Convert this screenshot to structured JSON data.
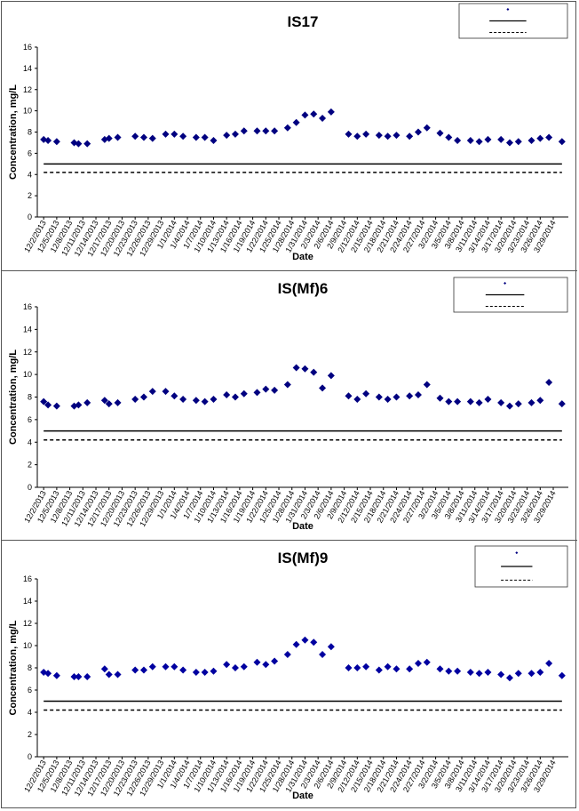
{
  "chart_data": [
    {
      "type": "scatter",
      "title": "IS17",
      "xlabel": "Date",
      "ylabel": "Concentration, mg/L",
      "ylim": [
        0,
        16
      ],
      "yticks": [
        0,
        2,
        4,
        6,
        8,
        10,
        12,
        14,
        16
      ],
      "grid": false,
      "legend": "top-right",
      "x_tick_labels": [
        "12/2/2013",
        "12/5/2013",
        "12/8/2013",
        "12/11/2013",
        "12/14/2013",
        "12/17/2013",
        "12/20/2013",
        "12/23/2013",
        "12/26/2013",
        "12/29/2013",
        "1/1/2014",
        "1/4/2014",
        "1/7/2014",
        "1/10/2014",
        "1/13/2014",
        "1/16/2014",
        "1/19/2014",
        "1/22/2014",
        "1/25/2014",
        "1/28/2014",
        "1/31/2014",
        "2/3/2014",
        "2/6/2014",
        "2/9/2014",
        "2/12/2014",
        "2/15/2014",
        "2/18/2014",
        "2/21/2014",
        "2/24/2014",
        "2/27/2014",
        "3/2/2014",
        "3/5/2014",
        "3/8/2014",
        "3/11/2014",
        "3/14/2014",
        "3/17/2014",
        "3/20/2014",
        "3/23/2014",
        "3/26/2014",
        "3/29/2014"
      ],
      "series": [
        {
          "name": "IS17",
          "marker": "diamond",
          "color": "#000080",
          "x": [
            "12/2/2013",
            "12/3/2013",
            "12/5/2013",
            "12/9/2013",
            "12/10/2013",
            "12/12/2013",
            "12/16/2013",
            "12/17/2013",
            "12/19/2013",
            "12/23/2013",
            "12/25/2013",
            "12/27/2013",
            "12/30/2013",
            "1/1/2014",
            "1/3/2014",
            "1/6/2014",
            "1/8/2014",
            "1/10/2014",
            "1/13/2014",
            "1/15/2014",
            "1/17/2014",
            "1/20/2014",
            "1/22/2014",
            "1/24/2014",
            "1/27/2014",
            "1/29/2014",
            "1/31/2014",
            "2/2/2014",
            "2/4/2014",
            "2/6/2014",
            "2/10/2014",
            "2/12/2014",
            "2/14/2014",
            "2/17/2014",
            "2/19/2014",
            "2/21/2014",
            "2/24/2014",
            "2/26/2014",
            "2/28/2014",
            "3/3/2014",
            "3/5/2014",
            "3/7/2014",
            "3/10/2014",
            "3/12/2014",
            "3/14/2014",
            "3/17/2014",
            "3/19/2014",
            "3/21/2014",
            "3/24/2014",
            "3/26/2014",
            "3/28/2014",
            "3/31/2014"
          ],
          "y": [
            7.3,
            7.2,
            7.1,
            7.0,
            6.9,
            6.9,
            7.3,
            7.4,
            7.5,
            7.6,
            7.5,
            7.4,
            7.8,
            7.8,
            7.6,
            7.5,
            7.5,
            7.2,
            7.7,
            7.8,
            8.1,
            8.1,
            8.1,
            8.1,
            8.4,
            8.9,
            9.6,
            9.7,
            9.3,
            9.9,
            7.8,
            7.6,
            7.8,
            7.7,
            7.6,
            7.7,
            7.6,
            8.0,
            8.4,
            7.9,
            7.5,
            7.2,
            7.2,
            7.1,
            7.3,
            7.3,
            7.0,
            7.1,
            7.2,
            7.4,
            7.5,
            7.1
          ]
        },
        {
          "name": "",
          "style": "solid",
          "x": [
            "12/2/2013",
            "3/31/2014"
          ],
          "y": [
            5.0,
            5.0
          ]
        },
        {
          "name": "",
          "style": "dashed",
          "x": [
            "12/2/2013",
            "3/31/2014"
          ],
          "y": [
            4.2,
            4.2
          ]
        }
      ]
    },
    {
      "type": "scatter",
      "title": "IS(Mf)6",
      "xlabel": "Date",
      "ylabel": "Concentration, mg/L",
      "ylim": [
        0,
        16
      ],
      "yticks": [
        0,
        2,
        4,
        6,
        8,
        10,
        12,
        14,
        16
      ],
      "grid": false,
      "legend": "top-right",
      "x_tick_labels": [
        "12/2/2013",
        "12/5/2013",
        "12/8/2013",
        "12/11/2013",
        "12/14/2013",
        "12/17/2013",
        "12/20/2013",
        "12/23/2013",
        "12/26/2013",
        "12/29/2013",
        "1/1/2014",
        "1/4/2014",
        "1/7/2014",
        "1/10/2014",
        "1/13/2014",
        "1/16/2014",
        "1/19/2014",
        "1/22/2014",
        "1/25/2014",
        "1/28/2014",
        "1/31/2014",
        "2/3/2014",
        "2/6/2014",
        "2/9/2014",
        "2/12/2014",
        "2/15/2014",
        "2/18/2014",
        "2/21/2014",
        "2/24/2014",
        "2/27/2014",
        "3/2/2014",
        "3/5/2014",
        "3/8/2014",
        "3/11/2014",
        "3/14/2014",
        "3/17/2014",
        "3/20/2014",
        "3/23/2014",
        "3/26/2014",
        "3/29/2014"
      ],
      "series": [
        {
          "name": "IS(Mf)6",
          "marker": "diamond",
          "color": "#000080",
          "x": [
            "12/2/2013",
            "12/3/2013",
            "12/5/2013",
            "12/9/2013",
            "12/10/2013",
            "12/12/2013",
            "12/16/2013",
            "12/17/2013",
            "12/19/2013",
            "12/23/2013",
            "12/25/2013",
            "12/27/2013",
            "12/30/2013",
            "1/1/2014",
            "1/3/2014",
            "1/6/2014",
            "1/8/2014",
            "1/10/2014",
            "1/13/2014",
            "1/15/2014",
            "1/17/2014",
            "1/20/2014",
            "1/22/2014",
            "1/24/2014",
            "1/27/2014",
            "1/29/2014",
            "1/31/2014",
            "2/2/2014",
            "2/4/2014",
            "2/6/2014",
            "2/10/2014",
            "2/12/2014",
            "2/14/2014",
            "2/17/2014",
            "2/19/2014",
            "2/21/2014",
            "2/24/2014",
            "2/26/2014",
            "2/28/2014",
            "3/3/2014",
            "3/5/2014",
            "3/7/2014",
            "3/10/2014",
            "3/12/2014",
            "3/14/2014",
            "3/17/2014",
            "3/19/2014",
            "3/21/2014",
            "3/24/2014",
            "3/26/2014",
            "3/28/2014",
            "3/31/2014"
          ],
          "y": [
            7.6,
            7.3,
            7.2,
            7.2,
            7.3,
            7.5,
            7.7,
            7.4,
            7.5,
            7.8,
            8.0,
            8.5,
            8.5,
            8.1,
            7.8,
            7.7,
            7.6,
            7.8,
            8.2,
            8.0,
            8.3,
            8.4,
            8.7,
            8.6,
            9.1,
            10.6,
            10.5,
            10.2,
            8.8,
            9.9,
            8.1,
            7.8,
            8.3,
            8.0,
            7.8,
            8.0,
            8.1,
            8.2,
            9.1,
            7.9,
            7.6,
            7.6,
            7.6,
            7.5,
            7.8,
            7.5,
            7.2,
            7.4,
            7.5,
            7.7,
            9.3,
            7.4
          ]
        },
        {
          "name": "",
          "style": "solid",
          "x": [
            "12/2/2013",
            "3/31/2014"
          ],
          "y": [
            5.0,
            5.0
          ]
        },
        {
          "name": "",
          "style": "dashed",
          "x": [
            "12/2/2013",
            "3/31/2014"
          ],
          "y": [
            4.2,
            4.2
          ]
        }
      ]
    },
    {
      "type": "scatter",
      "title": "IS(Mf)9",
      "xlabel": "Date",
      "ylabel": "Concentration, mg/L",
      "ylim": [
        0,
        16
      ],
      "yticks": [
        0,
        2,
        4,
        6,
        8,
        10,
        12,
        14,
        16
      ],
      "grid": false,
      "legend": "top-right",
      "x_tick_labels": [
        "12/2/2013",
        "12/5/2013",
        "12/8/2013",
        "12/11/2013",
        "12/14/2013",
        "12/17/2013",
        "12/20/2013",
        "12/23/2013",
        "12/26/2013",
        "12/29/2013",
        "1/1/2014",
        "1/4/2014",
        "1/7/2014",
        "1/10/2014",
        "1/13/2014",
        "1/16/2014",
        "1/19/2014",
        "1/22/2014",
        "1/25/2014",
        "1/28/2014",
        "1/31/2014",
        "2/3/2014",
        "2/6/2014",
        "2/9/2014",
        "2/12/2014",
        "2/15/2014",
        "2/18/2014",
        "2/21/2014",
        "2/24/2014",
        "2/27/2014",
        "3/2/2014",
        "3/5/2014",
        "3/8/2014",
        "3/11/2014",
        "3/14/2014",
        "3/17/2014",
        "3/20/2014",
        "3/23/2014",
        "3/26/2014",
        "3/29/2014"
      ],
      "series": [
        {
          "name": "IS(Mf)9",
          "marker": "diamond",
          "color": "#0000a0",
          "x": [
            "12/2/2013",
            "12/3/2013",
            "12/5/2013",
            "12/9/2013",
            "12/10/2013",
            "12/12/2013",
            "12/16/2013",
            "12/17/2013",
            "12/19/2013",
            "12/23/2013",
            "12/25/2013",
            "12/27/2013",
            "12/30/2013",
            "1/1/2014",
            "1/3/2014",
            "1/6/2014",
            "1/8/2014",
            "1/10/2014",
            "1/13/2014",
            "1/15/2014",
            "1/17/2014",
            "1/20/2014",
            "1/22/2014",
            "1/24/2014",
            "1/27/2014",
            "1/29/2014",
            "1/31/2014",
            "2/2/2014",
            "2/4/2014",
            "2/6/2014",
            "2/10/2014",
            "2/12/2014",
            "2/14/2014",
            "2/17/2014",
            "2/19/2014",
            "2/21/2014",
            "2/24/2014",
            "2/26/2014",
            "2/28/2014",
            "3/3/2014",
            "3/5/2014",
            "3/7/2014",
            "3/10/2014",
            "3/12/2014",
            "3/14/2014",
            "3/17/2014",
            "3/19/2014",
            "3/21/2014",
            "3/24/2014",
            "3/26/2014",
            "3/28/2014",
            "3/31/2014"
          ],
          "y": [
            7.6,
            7.5,
            7.3,
            7.2,
            7.2,
            7.2,
            7.9,
            7.4,
            7.4,
            7.8,
            7.8,
            8.1,
            8.1,
            8.1,
            7.8,
            7.6,
            7.6,
            7.7,
            8.3,
            8.0,
            8.1,
            8.5,
            8.3,
            8.6,
            9.2,
            10.1,
            10.5,
            10.3,
            9.2,
            9.9,
            8.0,
            8.0,
            8.1,
            7.8,
            8.1,
            7.9,
            7.9,
            8.4,
            8.5,
            7.9,
            7.7,
            7.7,
            7.6,
            7.5,
            7.6,
            7.4,
            7.1,
            7.5,
            7.5,
            7.6,
            8.4,
            7.3
          ]
        },
        {
          "name": "",
          "style": "solid",
          "x": [
            "12/2/2013",
            "3/31/2014"
          ],
          "y": [
            5.0,
            5.0
          ]
        },
        {
          "name": "",
          "style": "dashed",
          "x": [
            "12/2/2013",
            "3/31/2014"
          ],
          "y": [
            4.2,
            4.2
          ]
        }
      ]
    }
  ]
}
